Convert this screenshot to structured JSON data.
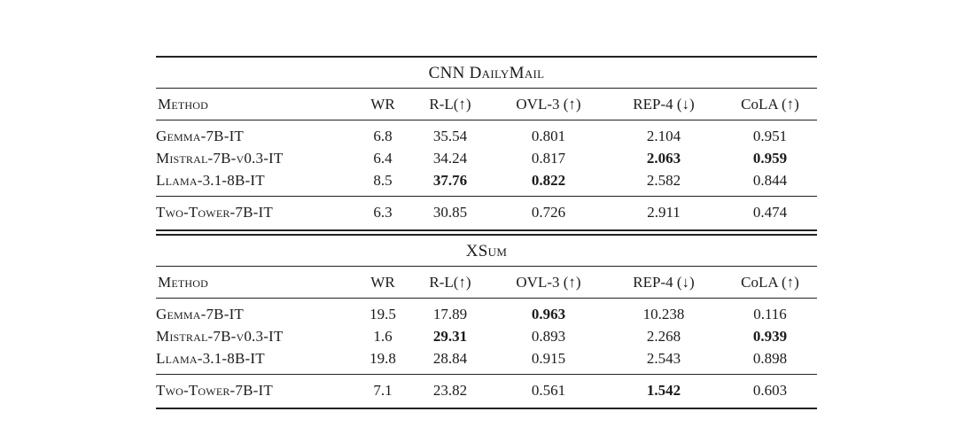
{
  "tables": [
    {
      "title": "CNN DailyMail",
      "columns": [
        "Method",
        "WR",
        "R-L(↑)",
        "OVL-3 (↑)",
        "REP-4 (↓)",
        "CoLA (↑)"
      ],
      "rows": [
        {
          "method": "Gemma-7B-IT",
          "cells": [
            {
              "v": "6.8"
            },
            {
              "v": "35.54"
            },
            {
              "v": "0.801"
            },
            {
              "v": "2.104"
            },
            {
              "v": "0.951"
            }
          ]
        },
        {
          "method": "Mistral-7B-v0.3-IT",
          "cells": [
            {
              "v": "6.4"
            },
            {
              "v": "34.24"
            },
            {
              "v": "0.817"
            },
            {
              "v": "2.063",
              "b": true
            },
            {
              "v": "0.959",
              "b": true
            }
          ]
        },
        {
          "method": "Llama-3.1-8B-IT",
          "cells": [
            {
              "v": "8.5"
            },
            {
              "v": "37.76",
              "b": true
            },
            {
              "v": "0.822",
              "b": true
            },
            {
              "v": "2.582"
            },
            {
              "v": "0.844"
            }
          ]
        }
      ],
      "footer": {
        "method": "Two-Tower-7B-IT",
        "cells": [
          {
            "v": "6.3"
          },
          {
            "v": "30.85"
          },
          {
            "v": "0.726"
          },
          {
            "v": "2.911"
          },
          {
            "v": "0.474"
          }
        ]
      }
    },
    {
      "title": "XSum",
      "columns": [
        "Method",
        "WR",
        "R-L(↑)",
        "OVL-3 (↑)",
        "REP-4 (↓)",
        "CoLA (↑)"
      ],
      "rows": [
        {
          "method": "Gemma-7B-IT",
          "cells": [
            {
              "v": "19.5"
            },
            {
              "v": "17.89"
            },
            {
              "v": "0.963",
              "b": true
            },
            {
              "v": "10.238"
            },
            {
              "v": "0.116"
            }
          ]
        },
        {
          "method": "Mistral-7B-v0.3-IT",
          "cells": [
            {
              "v": "1.6"
            },
            {
              "v": "29.31",
              "b": true
            },
            {
              "v": "0.893"
            },
            {
              "v": "2.268"
            },
            {
              "v": "0.939",
              "b": true
            }
          ]
        },
        {
          "method": "Llama-3.1-8B-IT",
          "cells": [
            {
              "v": "19.8"
            },
            {
              "v": "28.84"
            },
            {
              "v": "0.915"
            },
            {
              "v": "2.543"
            },
            {
              "v": "0.898"
            }
          ]
        }
      ],
      "footer": {
        "method": "Two-Tower-7B-IT",
        "cells": [
          {
            "v": "7.1"
          },
          {
            "v": "23.82"
          },
          {
            "v": "0.561"
          },
          {
            "v": "1.542",
            "b": true
          },
          {
            "v": "0.603"
          }
        ]
      }
    }
  ]
}
